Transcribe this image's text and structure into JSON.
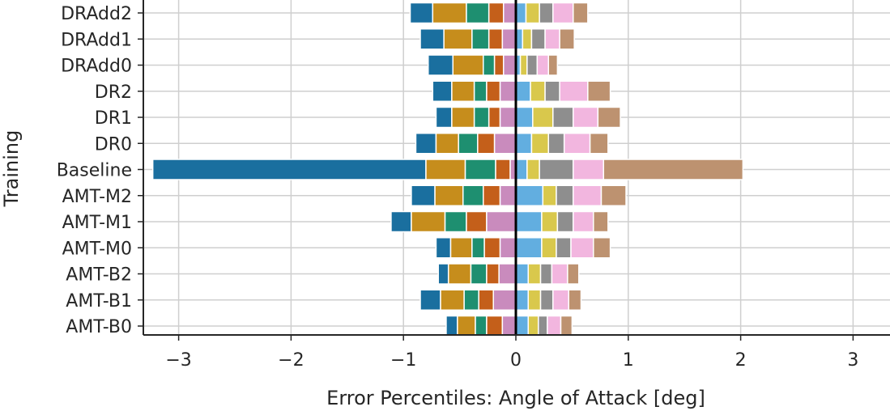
{
  "chart_data": {
    "type": "bar",
    "orientation": "horizontal-stacked-diverging",
    "title": "",
    "xlabel": "Error Percentiles: Angle of Attack [deg]",
    "ylabel": "Training",
    "xlim": [
      -3.3,
      3.3
    ],
    "xticks": [
      -3,
      -2,
      -1,
      0,
      1,
      2,
      3
    ],
    "xtick_labels": [
      "−3",
      "−2",
      "−1",
      "0",
      "1",
      "2",
      "3"
    ],
    "grid": true,
    "legend": "none",
    "zero_line": true,
    "categories": [
      "DRAdd2",
      "DRAdd1",
      "DRAdd0",
      "DR2",
      "DR1",
      "DR0",
      "Baseline",
      "AMT-M2",
      "AMT-M1",
      "AMT-M0",
      "AMT-B2",
      "AMT-B1",
      "AMT-B0"
    ],
    "segment_colors": [
      "#1a6f9f",
      "#c68d1c",
      "#1e8f70",
      "#c45f1a",
      "#c98bbd",
      "#62aee0",
      "#d9c84c",
      "#8e8e8e",
      "#f2b6df",
      "#bd9270"
    ],
    "segments": [
      [
        -0.94,
        -0.74,
        -0.44,
        -0.24,
        -0.11,
        0,
        0.09,
        0.21,
        0.33,
        0.51,
        0.64
      ],
      [
        -0.85,
        -0.64,
        -0.39,
        -0.24,
        -0.12,
        0,
        0.06,
        0.14,
        0.26,
        0.39,
        0.52
      ],
      [
        -0.78,
        -0.56,
        -0.29,
        -0.19,
        -0.11,
        0,
        0.04,
        0.1,
        0.19,
        0.29,
        0.37
      ],
      [
        -0.74,
        -0.57,
        -0.37,
        -0.26,
        -0.14,
        0,
        0.13,
        0.26,
        0.39,
        0.64,
        0.84
      ],
      [
        -0.71,
        -0.57,
        -0.37,
        -0.24,
        -0.14,
        0,
        0.15,
        0.33,
        0.51,
        0.73,
        0.93
      ],
      [
        -0.89,
        -0.71,
        -0.51,
        -0.34,
        -0.19,
        0,
        0.14,
        0.29,
        0.43,
        0.66,
        0.82
      ],
      [
        -3.23,
        -0.8,
        -0.45,
        -0.18,
        -0.05,
        0,
        0.1,
        0.21,
        0.51,
        0.78,
        2.02
      ],
      [
        -0.93,
        -0.72,
        -0.47,
        -0.29,
        -0.14,
        0,
        0.24,
        0.36,
        0.51,
        0.76,
        0.98
      ],
      [
        -1.11,
        -0.93,
        -0.63,
        -0.44,
        -0.26,
        0,
        0.23,
        0.37,
        0.51,
        0.69,
        0.82
      ],
      [
        -0.71,
        -0.58,
        -0.39,
        -0.28,
        -0.14,
        0,
        0.23,
        0.36,
        0.49,
        0.69,
        0.84
      ],
      [
        -0.69,
        -0.6,
        -0.4,
        -0.26,
        -0.15,
        0,
        0.11,
        0.22,
        0.32,
        0.46,
        0.56
      ],
      [
        -0.85,
        -0.67,
        -0.46,
        -0.33,
        -0.2,
        0,
        0.11,
        0.22,
        0.33,
        0.47,
        0.58
      ],
      [
        -0.62,
        -0.52,
        -0.36,
        -0.26,
        -0.12,
        0,
        0.11,
        0.2,
        0.28,
        0.4,
        0.5
      ]
    ]
  }
}
